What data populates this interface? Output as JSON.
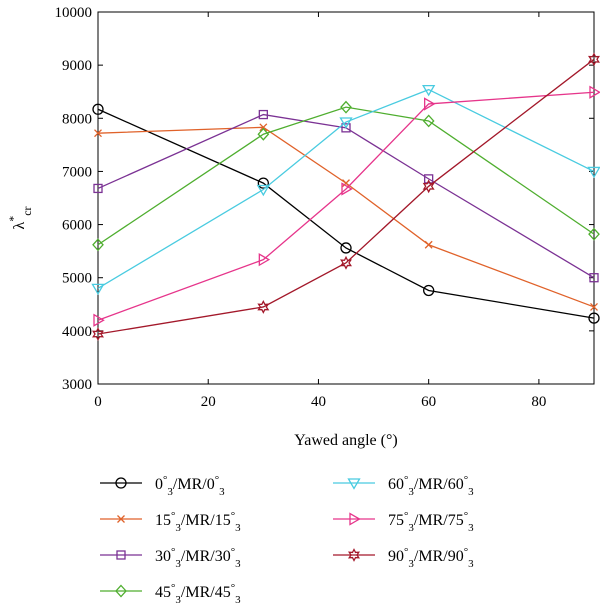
{
  "chart_data": {
    "type": "line",
    "xlabel": "Yawed angle (°)",
    "ylabel": "λ*cr",
    "ylabel_parts": {
      "base": "λ",
      "sup": "*",
      "sub": "cr"
    },
    "xlim": [
      0,
      90
    ],
    "ylim": [
      3000,
      10000
    ],
    "x_ticks": [
      0,
      20,
      40,
      60,
      80
    ],
    "y_ticks": [
      3000,
      4000,
      5000,
      6000,
      7000,
      8000,
      9000,
      10000
    ],
    "grid": false,
    "legend_position": "below",
    "x": [
      0,
      30,
      45,
      60,
      90
    ],
    "series": [
      {
        "name": "0°3/MR/0°3",
        "label_parts": [
          "0",
          "3",
          "/MR/0",
          "3"
        ],
        "color": "#000000",
        "marker": "circle",
        "values": [
          8170,
          6780,
          5560,
          4760,
          4240
        ]
      },
      {
        "name": "15°3/MR/15°3",
        "label_parts": [
          "15",
          "3",
          "/MR/15",
          "3"
        ],
        "color": "#e0622a",
        "marker": "x",
        "values": [
          7720,
          7830,
          6780,
          5620,
          4450
        ]
      },
      {
        "name": "30°3/MR/30°3",
        "label_parts": [
          "30",
          "3",
          "/MR/30",
          "3"
        ],
        "color": "#7b3294",
        "marker": "square",
        "values": [
          6680,
          8070,
          7820,
          6860,
          5000
        ]
      },
      {
        "name": "45°3/MR/45°3",
        "label_parts": [
          "45",
          "3",
          "/MR/45",
          "3"
        ],
        "color": "#4fae2f",
        "marker": "diamond",
        "values": [
          5620,
          7700,
          8210,
          7950,
          5820
        ]
      },
      {
        "name": "60°3/MR/60°3",
        "label_parts": [
          "60",
          "3",
          "/MR/60",
          "3"
        ],
        "color": "#49cbe0",
        "marker": "triangle-down",
        "values": [
          4800,
          6660,
          7930,
          8540,
          7000
        ]
      },
      {
        "name": "75°3/MR/75°3",
        "label_parts": [
          "75",
          "3",
          "/MR/75",
          "3"
        ],
        "color": "#e6358b",
        "marker": "triangle-right",
        "values": [
          4200,
          5340,
          6670,
          8270,
          8490
        ]
      },
      {
        "name": "90°3/MR/90°3",
        "label_parts": [
          "90",
          "3",
          "/MR/90",
          "3"
        ],
        "color": "#a3182a",
        "marker": "star",
        "values": [
          3940,
          4450,
          5280,
          6720,
          9110
        ]
      }
    ]
  }
}
